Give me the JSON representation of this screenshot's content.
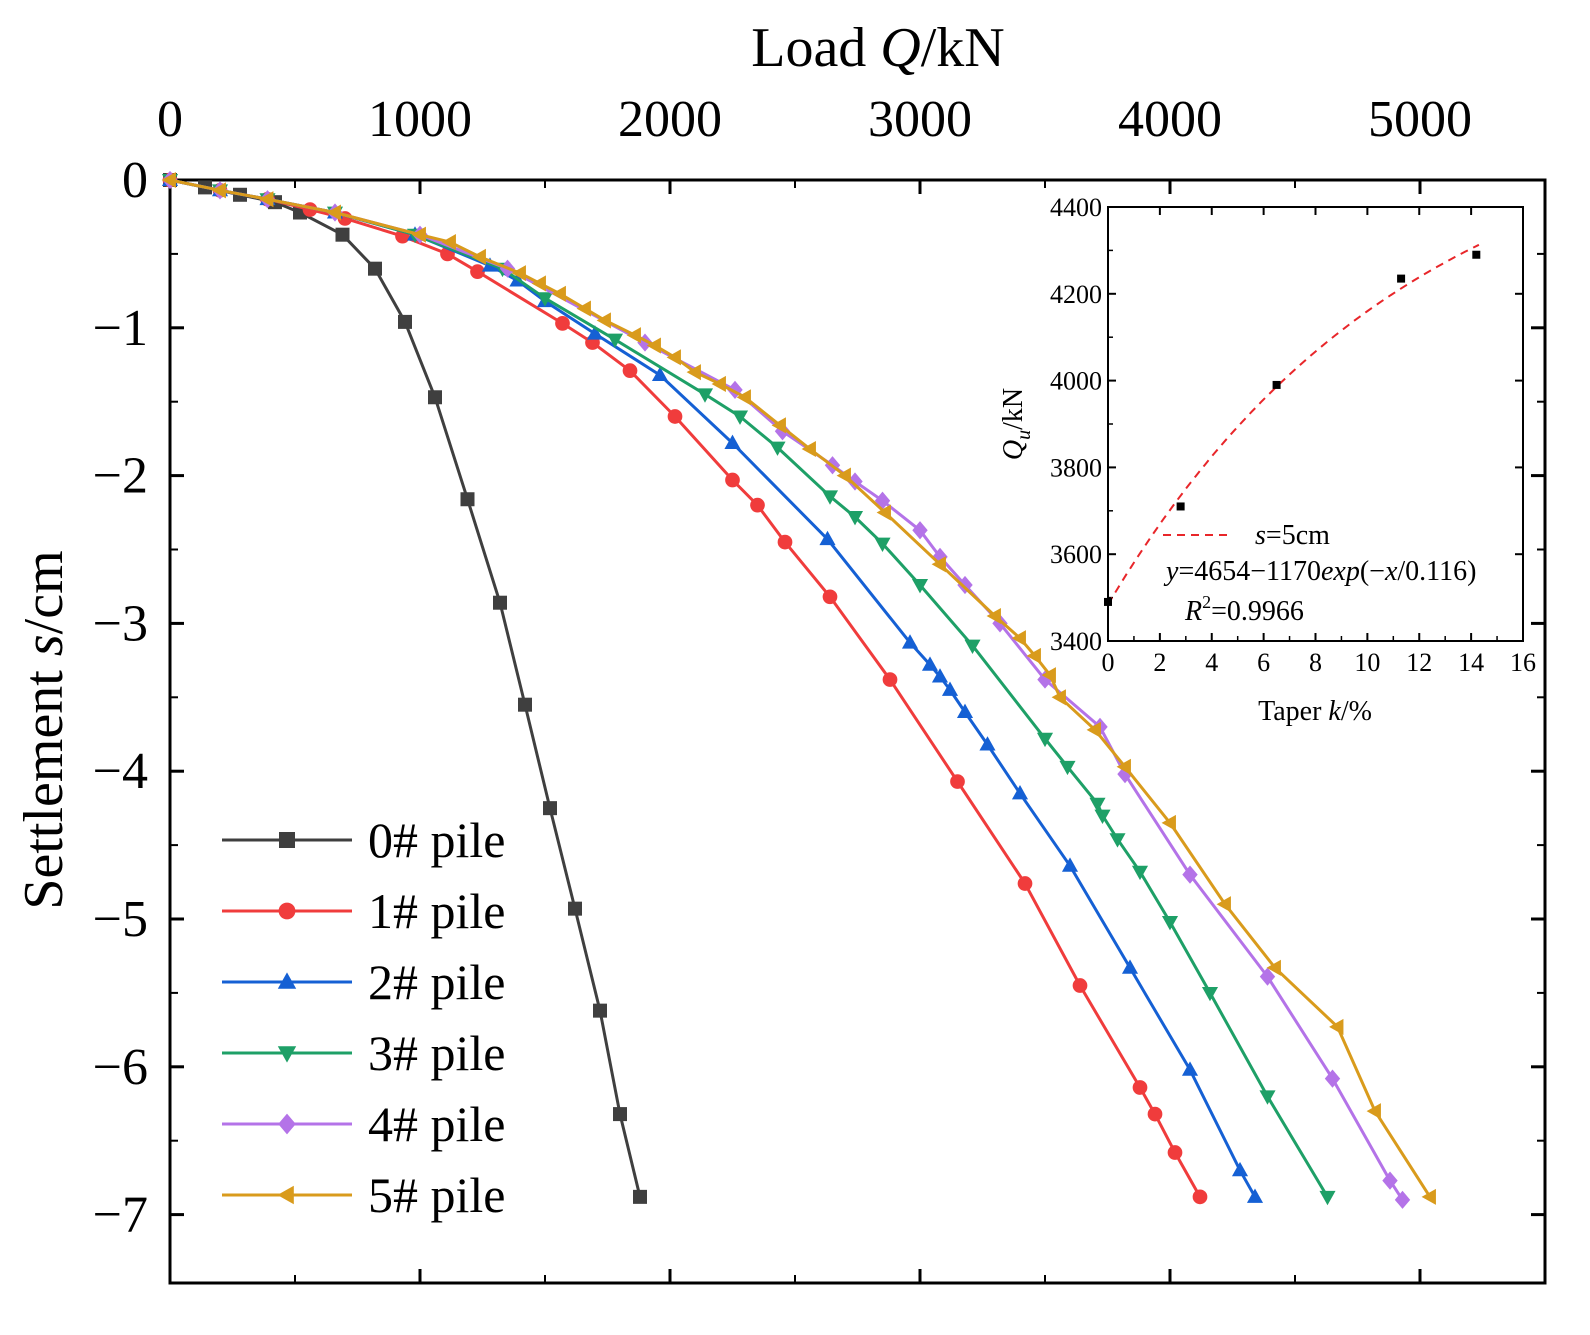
{
  "chart_data": {
    "type": "line",
    "title": "",
    "xlabel_prefix": "Load ",
    "xlabel_var": "Q",
    "xlabel_suffix": "/kN",
    "ylabel_prefix": "Settlement ",
    "ylabel_var": "s",
    "ylabel_suffix": "/cm",
    "xlim": [
      0,
      5500
    ],
    "ylim": [
      -7.5,
      0
    ],
    "x_ticks": [
      0,
      1000,
      2000,
      3000,
      4000,
      5000
    ],
    "x_tick_labels": [
      "0",
      "1000",
      "2000",
      "3000",
      "4000",
      "5000"
    ],
    "y_ticks": [
      0,
      -1,
      -2,
      -3,
      -4,
      -5,
      -6,
      -7
    ],
    "y_tick_labels": [
      "0",
      "−1",
      "−2",
      "−3",
      "−4",
      "−5",
      "−6",
      "−7"
    ],
    "legend_position": "bottom-left",
    "series": [
      {
        "name": "0# pile",
        "color": "#3f3f3f",
        "marker": "square",
        "points": [
          [
            0,
            0
          ],
          [
            140,
            -0.05
          ],
          [
            280,
            -0.1
          ],
          [
            420,
            -0.15
          ],
          [
            520,
            -0.22
          ],
          [
            690,
            -0.37
          ],
          [
            820,
            -0.6
          ],
          [
            940,
            -0.96
          ],
          [
            1060,
            -1.47
          ],
          [
            1190,
            -2.16
          ],
          [
            1320,
            -2.86
          ],
          [
            1420,
            -3.55
          ],
          [
            1520,
            -4.25
          ],
          [
            1620,
            -4.93
          ],
          [
            1720,
            -5.62
          ],
          [
            1800,
            -6.32
          ],
          [
            1880,
            -6.88
          ]
        ]
      },
      {
        "name": "1# pile",
        "color": "#f03c3c",
        "marker": "circle",
        "points": [
          [
            0,
            0
          ],
          [
            200,
            -0.07
          ],
          [
            390,
            -0.13
          ],
          [
            560,
            -0.2
          ],
          [
            700,
            -0.26
          ],
          [
            930,
            -0.38
          ],
          [
            1110,
            -0.5
          ],
          [
            1230,
            -0.62
          ],
          [
            1570,
            -0.97
          ],
          [
            1690,
            -1.1
          ],
          [
            1840,
            -1.29
          ],
          [
            2020,
            -1.6
          ],
          [
            2250,
            -2.03
          ],
          [
            2350,
            -2.2
          ],
          [
            2460,
            -2.45
          ],
          [
            2640,
            -2.82
          ],
          [
            2880,
            -3.38
          ],
          [
            3150,
            -4.07
          ],
          [
            3420,
            -4.76
          ],
          [
            3640,
            -5.45
          ],
          [
            3880,
            -6.14
          ],
          [
            3940,
            -6.32
          ],
          [
            4020,
            -6.58
          ],
          [
            4120,
            -6.88
          ]
        ]
      },
      {
        "name": "2# pile",
        "color": "#1560d4",
        "marker": "triangle-up",
        "points": [
          [
            0,
            0
          ],
          [
            200,
            -0.07
          ],
          [
            390,
            -0.13
          ],
          [
            660,
            -0.22
          ],
          [
            980,
            -0.37
          ],
          [
            1280,
            -0.58
          ],
          [
            1390,
            -0.68
          ],
          [
            1500,
            -0.82
          ],
          [
            1700,
            -1.04
          ],
          [
            1960,
            -1.32
          ],
          [
            2250,
            -1.78
          ],
          [
            2630,
            -2.43
          ],
          [
            2960,
            -3.13
          ],
          [
            3040,
            -3.28
          ],
          [
            3080,
            -3.36
          ],
          [
            3120,
            -3.45
          ],
          [
            3180,
            -3.6
          ],
          [
            3270,
            -3.82
          ],
          [
            3400,
            -4.15
          ],
          [
            3600,
            -4.64
          ],
          [
            3840,
            -5.33
          ],
          [
            4080,
            -6.02
          ],
          [
            4280,
            -6.7
          ],
          [
            4340,
            -6.88
          ]
        ]
      },
      {
        "name": "3# pile",
        "color": "#1ea067",
        "marker": "triangle-down",
        "points": [
          [
            0,
            0
          ],
          [
            200,
            -0.07
          ],
          [
            390,
            -0.13
          ],
          [
            660,
            -0.22
          ],
          [
            980,
            -0.37
          ],
          [
            1330,
            -0.6
          ],
          [
            1500,
            -0.8
          ],
          [
            1780,
            -1.08
          ],
          [
            2140,
            -1.45
          ],
          [
            2280,
            -1.6
          ],
          [
            2430,
            -1.81
          ],
          [
            2640,
            -2.14
          ],
          [
            2740,
            -2.28
          ],
          [
            2850,
            -2.46
          ],
          [
            3000,
            -2.74
          ],
          [
            3210,
            -3.15
          ],
          [
            3500,
            -3.78
          ],
          [
            3590,
            -3.97
          ],
          [
            3710,
            -4.22
          ],
          [
            3730,
            -4.3
          ],
          [
            3790,
            -4.46
          ],
          [
            3880,
            -4.68
          ],
          [
            4000,
            -5.02
          ],
          [
            4160,
            -5.5
          ],
          [
            4390,
            -6.2
          ],
          [
            4630,
            -6.88
          ]
        ]
      },
      {
        "name": "4# pile",
        "color": "#b473e8",
        "marker": "diamond",
        "points": [
          [
            0,
            0
          ],
          [
            200,
            -0.07
          ],
          [
            390,
            -0.13
          ],
          [
            660,
            -0.22
          ],
          [
            1000,
            -0.37
          ],
          [
            1350,
            -0.6
          ],
          [
            1900,
            -1.1
          ],
          [
            2260,
            -1.42
          ],
          [
            2450,
            -1.7
          ],
          [
            2650,
            -1.93
          ],
          [
            2740,
            -2.04
          ],
          [
            2850,
            -2.17
          ],
          [
            3000,
            -2.37
          ],
          [
            3080,
            -2.55
          ],
          [
            3180,
            -2.74
          ],
          [
            3320,
            -3.0
          ],
          [
            3500,
            -3.38
          ],
          [
            3720,
            -3.7
          ],
          [
            3820,
            -4.02
          ],
          [
            4080,
            -4.7
          ],
          [
            4390,
            -5.39
          ],
          [
            4650,
            -6.08
          ],
          [
            4880,
            -6.77
          ],
          [
            4930,
            -6.9
          ]
        ]
      },
      {
        "name": "5# pile",
        "color": "#d99b1c",
        "marker": "triangle-left",
        "points": [
          [
            0,
            0
          ],
          [
            200,
            -0.07
          ],
          [
            390,
            -0.13
          ],
          [
            660,
            -0.22
          ],
          [
            1000,
            -0.37
          ],
          [
            1120,
            -0.42
          ],
          [
            1240,
            -0.52
          ],
          [
            1400,
            -0.63
          ],
          [
            1480,
            -0.7
          ],
          [
            1560,
            -0.77
          ],
          [
            1660,
            -0.87
          ],
          [
            1740,
            -0.95
          ],
          [
            1860,
            -1.05
          ],
          [
            1940,
            -1.12
          ],
          [
            2020,
            -1.2
          ],
          [
            2100,
            -1.3
          ],
          [
            2200,
            -1.38
          ],
          [
            2300,
            -1.47
          ],
          [
            2440,
            -1.66
          ],
          [
            2560,
            -1.82
          ],
          [
            2700,
            -2.0
          ],
          [
            2860,
            -2.25
          ],
          [
            3080,
            -2.6
          ],
          [
            3300,
            -2.95
          ],
          [
            3400,
            -3.1
          ],
          [
            3460,
            -3.22
          ],
          [
            3520,
            -3.35
          ],
          [
            3560,
            -3.5
          ],
          [
            3700,
            -3.72
          ],
          [
            3820,
            -3.97
          ],
          [
            4000,
            -4.35
          ],
          [
            4220,
            -4.9
          ],
          [
            4420,
            -5.33
          ],
          [
            4670,
            -5.73
          ],
          [
            4820,
            -6.3
          ],
          [
            5040,
            -6.88
          ]
        ]
      }
    ],
    "inset": {
      "type": "scatter",
      "xlabel_prefix": "Taper ",
      "xlabel_var": "k",
      "xlabel_suffix": "/%",
      "ylabel_var": "Q",
      "ylabel_sub": "u",
      "ylabel_suffix": "/kN",
      "xlim": [
        0,
        16
      ],
      "ylim": [
        3400,
        4400
      ],
      "x_ticks": [
        0,
        2,
        4,
        6,
        8,
        10,
        12,
        14,
        16
      ],
      "x_tick_labels": [
        "0",
        "2",
        "4",
        "6",
        "8",
        "10",
        "12",
        "14",
        "16"
      ],
      "y_ticks": [
        3400,
        3600,
        3800,
        4000,
        4200,
        4400
      ],
      "y_tick_labels": [
        "3400",
        "3600",
        "3800",
        "4000",
        "4200",
        "4400"
      ],
      "points": [
        [
          0,
          3490
        ],
        [
          2.8,
          3710
        ],
        [
          6.5,
          3990
        ],
        [
          11.3,
          4235
        ],
        [
          14.2,
          4290
        ]
      ],
      "fit": {
        "a": 4654,
        "b": 1170,
        "c": 0.116,
        "xmax": 14.3,
        "color": "#e8262a"
      },
      "legend_label_var": "s",
      "legend_label_rest": "=5cm",
      "equation_parts": [
        "y",
        "=4654−1170",
        "exp",
        "(−",
        "x",
        "/0.116)"
      ],
      "r2_var": "R",
      "r2_sup": "2",
      "r2_value": "=0.9966"
    }
  }
}
